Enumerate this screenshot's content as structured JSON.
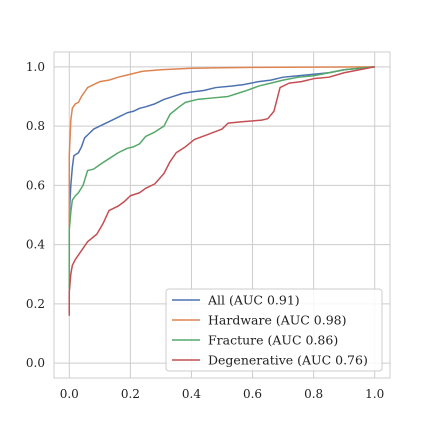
{
  "chart_data": {
    "type": "line",
    "title": "",
    "xlabel": "",
    "ylabel": "",
    "xlim": [
      -0.05,
      1.05
    ],
    "ylim": [
      -0.05,
      1.05
    ],
    "xticks": [
      0.0,
      0.2,
      0.4,
      0.6,
      0.8,
      1.0
    ],
    "yticks": [
      0.0,
      0.2,
      0.4,
      0.6,
      0.8,
      1.0
    ],
    "xtick_labels": [
      "0.0",
      "0.2",
      "0.4",
      "0.6",
      "0.8",
      "1.0"
    ],
    "ytick_labels": [
      "0.0",
      "0.2",
      "0.4",
      "0.6",
      "0.8",
      "1.0"
    ],
    "grid": true,
    "legend_position": "lower-right",
    "series": [
      {
        "name": "All (AUC 0.91)",
        "color": "#4c72b0",
        "x": [
          0.0,
          0.0,
          0.005,
          0.01,
          0.015,
          0.03,
          0.04,
          0.05,
          0.06,
          0.08,
          0.1,
          0.13,
          0.16,
          0.19,
          0.21,
          0.23,
          0.25,
          0.28,
          0.31,
          0.34,
          0.37,
          0.4,
          0.44,
          0.48,
          0.53,
          0.57,
          0.62,
          0.66,
          0.7,
          0.75,
          0.8,
          0.85,
          0.9,
          0.95,
          1.0
        ],
        "y": [
          0.25,
          0.5,
          0.6,
          0.66,
          0.7,
          0.71,
          0.73,
          0.76,
          0.77,
          0.79,
          0.8,
          0.815,
          0.83,
          0.845,
          0.85,
          0.86,
          0.865,
          0.875,
          0.89,
          0.9,
          0.91,
          0.915,
          0.92,
          0.93,
          0.935,
          0.94,
          0.95,
          0.955,
          0.965,
          0.97,
          0.975,
          0.98,
          0.99,
          0.995,
          1.0
        ]
      },
      {
        "name": "Hardware (AUC 0.98)",
        "color": "#dd8452",
        "x": [
          0.0,
          0.0,
          0.005,
          0.01,
          0.02,
          0.03,
          0.04,
          0.05,
          0.06,
          0.08,
          0.1,
          0.13,
          0.16,
          0.2,
          0.24,
          0.3,
          0.4,
          0.5,
          0.6,
          0.8,
          1.0
        ],
        "y": [
          0.25,
          0.7,
          0.82,
          0.86,
          0.875,
          0.88,
          0.9,
          0.915,
          0.93,
          0.94,
          0.95,
          0.955,
          0.965,
          0.975,
          0.985,
          0.99,
          0.995,
          0.997,
          0.998,
          0.999,
          1.0
        ]
      },
      {
        "name": "Fracture (AUC 0.86)",
        "color": "#55a868",
        "x": [
          0.0,
          0.0,
          0.005,
          0.01,
          0.02,
          0.03,
          0.045,
          0.06,
          0.08,
          0.1,
          0.13,
          0.16,
          0.19,
          0.21,
          0.23,
          0.25,
          0.28,
          0.31,
          0.33,
          0.36,
          0.38,
          0.42,
          0.47,
          0.52,
          0.55,
          0.58,
          0.62,
          0.66,
          0.7,
          0.75,
          0.8,
          0.85,
          0.9,
          0.95,
          1.0
        ],
        "y": [
          0.25,
          0.45,
          0.51,
          0.55,
          0.565,
          0.575,
          0.6,
          0.65,
          0.655,
          0.67,
          0.69,
          0.71,
          0.725,
          0.73,
          0.74,
          0.765,
          0.78,
          0.8,
          0.84,
          0.865,
          0.88,
          0.89,
          0.895,
          0.9,
          0.91,
          0.92,
          0.935,
          0.945,
          0.955,
          0.965,
          0.97,
          0.98,
          0.99,
          0.995,
          1.0
        ]
      },
      {
        "name": "Degenerative (AUC 0.76)",
        "color": "#c44e52",
        "x": [
          0.0,
          0.0,
          0.005,
          0.01,
          0.02,
          0.04,
          0.06,
          0.09,
          0.11,
          0.13,
          0.16,
          0.18,
          0.2,
          0.23,
          0.25,
          0.28,
          0.31,
          0.33,
          0.35,
          0.38,
          0.41,
          0.45,
          0.5,
          0.52,
          0.57,
          0.63,
          0.65,
          0.67,
          0.69,
          0.72,
          0.76,
          0.8,
          0.85,
          0.9,
          0.95,
          1.0
        ],
        "y": [
          0.16,
          0.24,
          0.3,
          0.33,
          0.35,
          0.38,
          0.41,
          0.435,
          0.47,
          0.515,
          0.53,
          0.545,
          0.565,
          0.575,
          0.59,
          0.605,
          0.64,
          0.68,
          0.71,
          0.73,
          0.755,
          0.77,
          0.79,
          0.81,
          0.815,
          0.82,
          0.825,
          0.85,
          0.93,
          0.945,
          0.95,
          0.96,
          0.965,
          0.98,
          0.99,
          1.0
        ]
      }
    ]
  }
}
